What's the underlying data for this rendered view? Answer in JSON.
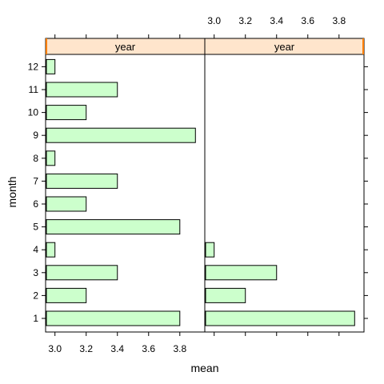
{
  "chart_data": {
    "type": "bar",
    "orientation": "horizontal",
    "xlabel": "mean",
    "ylabel": "month",
    "xlim": [
      2.94,
      3.96
    ],
    "x_ticks": [
      "3.0",
      "3.2",
      "3.4",
      "3.6",
      "3.8"
    ],
    "x_tick_values": [
      3.0,
      3.2,
      3.4,
      3.6,
      3.8
    ],
    "categories": [
      "1",
      "2",
      "3",
      "4",
      "5",
      "6",
      "7",
      "8",
      "9",
      "10",
      "11",
      "12"
    ],
    "panels": [
      {
        "strip": "year",
        "values": [
          3.8,
          3.2,
          3.4,
          3.0,
          3.8,
          3.2,
          3.4,
          3.0,
          3.9,
          3.2,
          3.4,
          3.0
        ]
      },
      {
        "strip": "year",
        "values": [
          3.9,
          3.2,
          3.4,
          3.0,
          null,
          null,
          null,
          null,
          null,
          null,
          null,
          null
        ]
      }
    ],
    "colors": {
      "bar_fill": "#ccffcc",
      "bar_stroke": "#000000",
      "strip_fill": "#ffe5cc",
      "strip_marker": "#ff7f00"
    },
    "grid": false
  }
}
